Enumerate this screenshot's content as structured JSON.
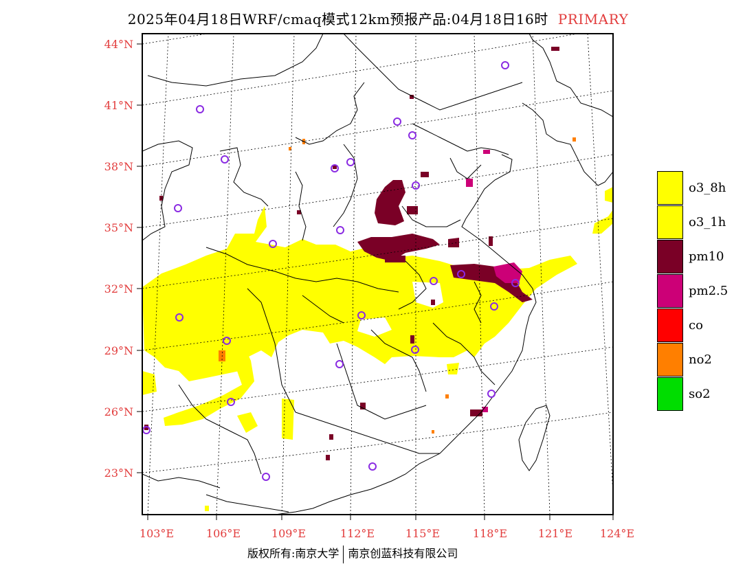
{
  "title": {
    "main": "2025年04月18日WRF/cmaq模式12km预报产品:04月18日16时",
    "tag": "PRIMARY"
  },
  "axes": {
    "lat_labels": [
      "23°N",
      "26°N",
      "29°N",
      "32°N",
      "35°N",
      "38°N",
      "41°N",
      "44°N"
    ],
    "lon_labels": [
      "103°E",
      "106°E",
      "109°E",
      "112°E",
      "115°E",
      "118°E",
      "121°E",
      "124°E"
    ],
    "label_color": "#e23c3c"
  },
  "legend": [
    {
      "label": "o3_8h",
      "color": "#ffff00"
    },
    {
      "label": "o3_1h",
      "color": "#ffff00"
    },
    {
      "label": "pm10",
      "color": "#7a0026"
    },
    {
      "label": "pm2.5",
      "color": "#cc0077"
    },
    {
      "label": "co",
      "color": "#ff0000"
    },
    {
      "label": "no2",
      "color": "#ff7f00"
    },
    {
      "label": "so2",
      "color": "#00dd00"
    }
  ],
  "footer": {
    "left": "版权所有:南京大学",
    "right": "南京创蓝科技有限公司"
  },
  "colors": {
    "o3": "#ffff00",
    "pm10": "#7a0026",
    "pm25": "#cc0077",
    "no2": "#ff7f00",
    "station_marker": "#8a2be2",
    "border": "#000000"
  }
}
